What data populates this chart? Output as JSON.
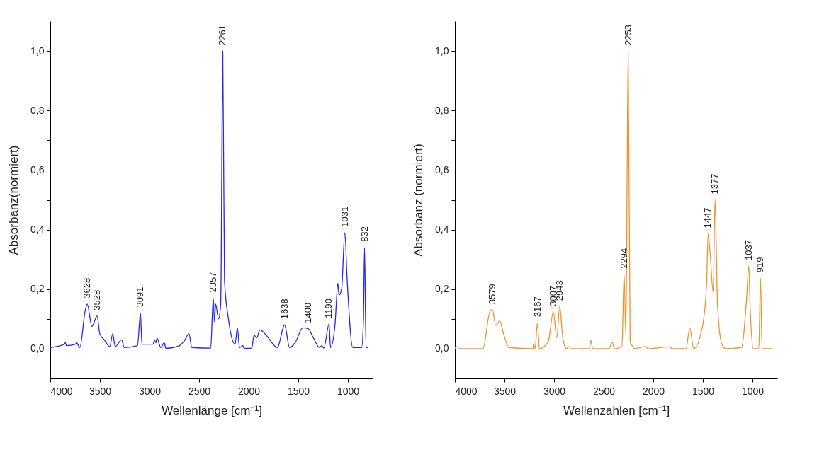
{
  "chart_data": [
    {
      "type": "line",
      "xlabel": "Wellenlänge [cm⁻¹]",
      "ylabel": "Absorbanz(normiert)",
      "xlim": [
        4000,
        750
      ],
      "ylim": [
        -0.1,
        1.1
      ],
      "xticks": [
        4000,
        3500,
        3000,
        2500,
        2000,
        1500,
        1000
      ],
      "yticks": [
        {
          "value": 0,
          "label": "0,0"
        },
        {
          "value": 0.1,
          "label": null
        },
        {
          "value": 0.2,
          "label": "0,2"
        },
        {
          "value": 0.3,
          "label": null
        },
        {
          "value": 0.4,
          "label": "0,4"
        },
        {
          "value": 0.5,
          "label": null
        },
        {
          "value": 0.6,
          "label": "0,6"
        },
        {
          "value": 0.7,
          "label": null
        },
        {
          "value": 0.8,
          "label": "0,8"
        },
        {
          "value": 0.9,
          "label": null
        },
        {
          "value": 1.0,
          "label": "1,0"
        }
      ],
      "x": [
        4000,
        3859,
        3848,
        3837,
        3747,
        3736,
        3702,
        3647,
        3628,
        3580,
        3528,
        3501,
        3456,
        3400,
        3371,
        3345,
        3282,
        3255,
        3121,
        3091,
        3076,
        2964,
        2949,
        2935,
        2924,
        2886,
        2852,
        2834,
        2718,
        2651,
        2602,
        2573,
        2383,
        2357,
        2345,
        2333,
        2304,
        2282,
        2261,
        2244,
        2204,
        2137,
        2114,
        2092,
        2058,
        2047,
        1969,
        1946,
        1918,
        1886,
        1823,
        1711,
        1638,
        1588,
        1532,
        1454,
        1400,
        1353,
        1286,
        1264,
        1242,
        1190,
        1175,
        1130,
        1101,
        1090,
        1063,
        1031,
        1007,
        951,
        861,
        843,
        832,
        817,
        794
      ],
      "series": [
        {
          "color": "#2626e6",
          "values": [
            0.004,
            0.015,
            0.02,
            0.01,
            0.015,
            0.02,
            0.004,
            0.13,
            0.15,
            0.075,
            0.11,
            0.05,
            0.03,
            0.007,
            0.05,
            0.007,
            0.03,
            0.004,
            0.01,
            0.12,
            0.015,
            0.015,
            0.03,
            0.02,
            0.035,
            0.004,
            0.02,
            0.001,
            0.007,
            0.025,
            0.05,
            0.004,
            0.002,
            0.17,
            0.09,
            0.15,
            0.1,
            0.15,
            1.0,
            0.23,
            0.1,
            0.015,
            0.07,
            0.004,
            0.01,
            0.001,
            0.002,
            0.045,
            0.037,
            0.063,
            0.045,
            0.004,
            0.08,
            0.004,
            0.02,
            0.07,
            0.067,
            0.04,
            0.004,
            0.01,
            0.002,
            0.083,
            0.004,
            0.08,
            0.22,
            0.18,
            0.2,
            0.39,
            0.23,
            0.004,
            0.004,
            0.1,
            0.34,
            0.004,
            0.004
          ]
        }
      ],
      "annotations": [
        {
          "text": "3628",
          "x": 3628,
          "y": 0.15
        },
        {
          "text": "3528",
          "x": 3528,
          "y": 0.11
        },
        {
          "text": "3091",
          "x": 3091,
          "y": 0.12
        },
        {
          "text": "2357",
          "x": 2357,
          "y": 0.17
        },
        {
          "text": "2261",
          "x": 2261,
          "y": 1.0
        },
        {
          "text": "1638",
          "x": 1638,
          "y": 0.08
        },
        {
          "text": "1400",
          "x": 1400,
          "y": 0.067
        },
        {
          "text": "1190",
          "x": 1190,
          "y": 0.083
        },
        {
          "text": "1031",
          "x": 1031,
          "y": 0.39
        },
        {
          "text": "832",
          "x": 832,
          "y": 0.34
        }
      ]
    },
    {
      "type": "line",
      "xlabel": "Wellenzahlen [cm⁻¹]",
      "ylabel": "Absorbanz (normiert)",
      "xlim": [
        4000,
        750
      ],
      "ylim": [
        -0.1,
        1.1
      ],
      "xticks": [
        4000,
        3500,
        3000,
        2500,
        2000,
        1500,
        1000
      ],
      "yticks": [
        {
          "value": 0,
          "label": "0,0"
        },
        {
          "value": 0.1,
          "label": null
        },
        {
          "value": 0.2,
          "label": "0,2"
        },
        {
          "value": 0.3,
          "label": null
        },
        {
          "value": 0.4,
          "label": "0,4"
        },
        {
          "value": 0.5,
          "label": null
        },
        {
          "value": 0.6,
          "label": "0,6"
        },
        {
          "value": 0.7,
          "label": null
        },
        {
          "value": 0.8,
          "label": "0,8"
        },
        {
          "value": 0.9,
          "label": null
        },
        {
          "value": 1.0,
          "label": "1,0"
        }
      ],
      "x": [
        4000,
        3980,
        3958,
        3717,
        3641,
        3620,
        3590,
        3547,
        3509,
        3455,
        3214,
        3207,
        3192,
        3167,
        3148,
        3060,
        3007,
        2973,
        2943,
        2912,
        2874,
        2852,
        2830,
        2644,
        2629,
        2611,
        2447,
        2414,
        2392,
        2316,
        2294,
        2276,
        2253,
        2233,
        2206,
        2195,
        2075,
        2053,
        1834,
        1812,
        1670,
        1632,
        1593,
        1505,
        1462,
        1447,
        1427,
        1396,
        1377,
        1352,
        1308,
        1265,
        1111,
        1061,
        1037,
        1024,
        991,
        936,
        919,
        903,
        805
      ],
      "series": [
        {
          "color": "#f0922e",
          "values": [
            0,
            0.007,
            0,
            0,
            0.13,
            0.13,
            0.08,
            0.093,
            0.05,
            0.004,
            0,
            0.016,
            0,
            0.087,
            0,
            0.022,
            0.124,
            0.036,
            0.142,
            0.036,
            0,
            0.007,
            0,
            0,
            0.028,
            0,
            0,
            0.022,
            0,
            0.007,
            0.25,
            0.047,
            1.0,
            0.022,
            0.007,
            0,
            0.007,
            0,
            0.006,
            0,
            0,
            0.07,
            0,
            0.073,
            0.22,
            0.386,
            0.32,
            0.19,
            0.5,
            0.146,
            0.015,
            0,
            0.004,
            0.16,
            0.278,
            0.146,
            0,
            0,
            0.237,
            0,
            0
          ]
        }
      ],
      "annotations": [
        {
          "text": "3579",
          "x": 3620,
          "y": 0.13
        },
        {
          "text": "3167",
          "x": 3167,
          "y": 0.087
        },
        {
          "text": "3007",
          "x": 3007,
          "y": 0.124
        },
        {
          "text": "2943",
          "x": 2943,
          "y": 0.142
        },
        {
          "text": "2294",
          "x": 2294,
          "y": 0.25
        },
        {
          "text": "2253",
          "x": 2253,
          "y": 1.0
        },
        {
          "text": "1447",
          "x": 1447,
          "y": 0.386
        },
        {
          "text": "1377",
          "x": 1377,
          "y": 0.5
        },
        {
          "text": "1037",
          "x": 1037,
          "y": 0.278
        },
        {
          "text": "919",
          "x": 919,
          "y": 0.237
        }
      ]
    }
  ]
}
